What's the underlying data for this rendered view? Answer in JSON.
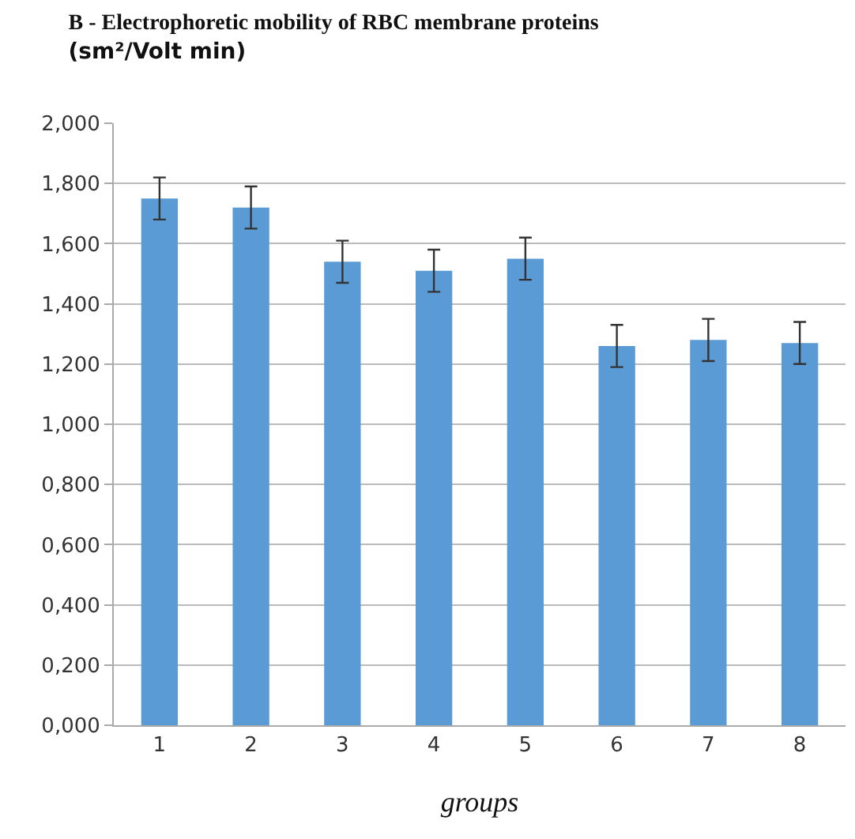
{
  "chart_data": {
    "type": "bar",
    "title": "B - Electrophoretic mobility of RBC membrane proteins",
    "subtitle": "(sm²/Volt min)",
    "xlabel": "groups",
    "categories": [
      "1",
      "2",
      "3",
      "4",
      "5",
      "6",
      "7",
      "8"
    ],
    "values": [
      1.75,
      1.72,
      1.54,
      1.51,
      1.55,
      1.26,
      1.28,
      1.27
    ],
    "errors": [
      0.07,
      0.07,
      0.07,
      0.07,
      0.07,
      0.07,
      0.07,
      0.07
    ],
    "color": "#5b9bd5",
    "ylim": [
      0,
      2
    ],
    "yticks": [
      {
        "value": 0,
        "label": "0,000"
      },
      {
        "value": 0.2,
        "label": "0,200"
      },
      {
        "value": 0.4,
        "label": "0,400"
      },
      {
        "value": 0.6,
        "label": "0,600"
      },
      {
        "value": 0.8,
        "label": "0,800"
      },
      {
        "value": 1,
        "label": "1,000"
      },
      {
        "value": 1.2,
        "label": "1,200"
      },
      {
        "value": 1.4,
        "label": "1,400"
      },
      {
        "value": 1.6,
        "label": "1,600"
      },
      {
        "value": 1.8,
        "label": "1,800"
      },
      {
        "value": 2,
        "label": "2,000"
      }
    ],
    "grid": "y"
  }
}
